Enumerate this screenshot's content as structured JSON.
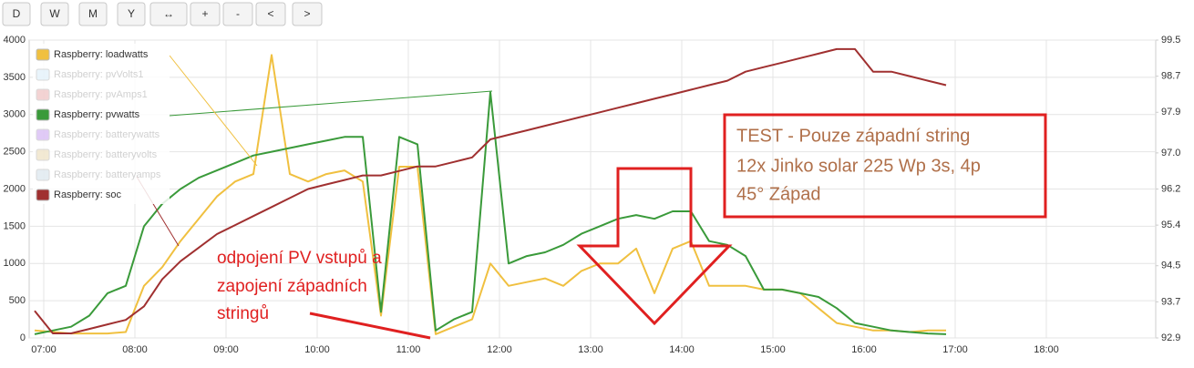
{
  "toolbar": [
    "D",
    "W",
    "M",
    "Y",
    "↔",
    "+",
    "-",
    "<",
    ">"
  ],
  "chart_data": {
    "type": "line",
    "x": [
      6.9,
      7.1,
      7.3,
      7.5,
      7.7,
      7.9,
      8.1,
      8.3,
      8.5,
      8.7,
      8.9,
      9.1,
      9.3,
      9.5,
      9.7,
      9.9,
      10.1,
      10.3,
      10.5,
      10.7,
      10.9,
      11.1,
      11.3,
      11.5,
      11.7,
      11.9,
      12.1,
      12.3,
      12.5,
      12.7,
      12.9,
      13.1,
      13.3,
      13.5,
      13.7,
      13.9,
      14.1,
      14.3,
      14.5,
      14.7,
      14.9,
      15.1,
      15.3,
      15.5,
      15.7,
      15.9,
      16.1,
      16.3,
      16.5,
      16.7,
      16.9
    ],
    "xlim": [
      6.84,
      19.2
    ],
    "xticks": [
      {
        "value": 7,
        "label": "07:00"
      },
      {
        "value": 8,
        "label": "08:00"
      },
      {
        "value": 9,
        "label": "09:00"
      },
      {
        "value": 10,
        "label": "10:00"
      },
      {
        "value": 11,
        "label": "11:00"
      },
      {
        "value": 12,
        "label": "12:00"
      },
      {
        "value": 13,
        "label": "13:00"
      },
      {
        "value": 14,
        "label": "14:00"
      },
      {
        "value": 15,
        "label": "15:00"
      },
      {
        "value": 16,
        "label": "16:00"
      },
      {
        "value": 17,
        "label": "17:00"
      },
      {
        "value": 18,
        "label": "18:00"
      }
    ],
    "ylim": [
      0,
      4000
    ],
    "yticks": [
      0,
      500,
      1000,
      1500,
      2000,
      2500,
      3000,
      3500,
      4000
    ],
    "y2lim": [
      92.9,
      99.5
    ],
    "y2ticks": [
      92.9,
      93.7,
      94.5,
      95.4,
      96.2,
      {
        "value": 97,
        "label": "97.0"
      },
      97.9,
      98.7,
      99.5
    ],
    "grid": true,
    "legend": "top-left",
    "series": [
      {
        "name": "Raspberry: loadwatts",
        "color": "#f0c040",
        "values": [
          100,
          80,
          60,
          60,
          60,
          80,
          700,
          950,
          1300,
          1600,
          1900,
          2100,
          2200,
          3800,
          2200,
          2100,
          2200,
          2250,
          2100,
          300,
          2300,
          2300,
          50,
          150,
          250,
          1000,
          700,
          750,
          800,
          700,
          900,
          1000,
          1000,
          1200,
          600,
          1200,
          1300,
          700,
          700,
          700,
          650,
          650,
          600,
          400,
          200,
          150,
          100,
          100,
          80,
          100,
          100
        ]
      },
      {
        "name": "Raspberry: pvVolts1",
        "color": "#d8ecf8",
        "visible": false
      },
      {
        "name": "Raspberry: pvAmps1",
        "color": "#eab0b0",
        "visible": false
      },
      {
        "name": "Raspberry: pvwatts",
        "color": "#3a9a3a",
        "values": [
          50,
          100,
          150,
          300,
          600,
          700,
          1500,
          1800,
          2000,
          2150,
          2250,
          2350,
          2450,
          2500,
          2550,
          2600,
          2650,
          2700,
          2700,
          350,
          2700,
          2600,
          100,
          250,
          350,
          3300,
          1000,
          1100,
          1150,
          1250,
          1400,
          1500,
          1600,
          1650,
          1600,
          1700,
          1700,
          1300,
          1250,
          1100,
          650,
          650,
          600,
          550,
          400,
          200,
          150,
          100,
          80,
          60,
          50
        ]
      },
      {
        "name": "Raspberry: batterywatts",
        "color": "#c8a0f0",
        "visible": false
      },
      {
        "name": "Raspberry: batteryvolts",
        "color": "#e8d8b0",
        "visible": false
      },
      {
        "name": "Raspberry: batteryamps",
        "color": "#d0e0e8",
        "visible": false
      },
      {
        "name": "Raspberry: soc",
        "color": "#a03030",
        "axis": "y2",
        "values": [
          93.5,
          93.0,
          93.0,
          93.1,
          93.2,
          93.3,
          93.6,
          94.2,
          94.6,
          94.9,
          95.2,
          95.4,
          95.6,
          95.8,
          96.0,
          96.2,
          96.3,
          96.4,
          96.5,
          96.5,
          96.6,
          96.7,
          96.7,
          96.8,
          96.9,
          97.3,
          97.4,
          97.5,
          97.6,
          97.7,
          97.8,
          97.9,
          98.0,
          98.1,
          98.2,
          98.3,
          98.4,
          98.5,
          98.6,
          98.8,
          98.9,
          99.0,
          99.1,
          99.2,
          99.3,
          99.3,
          98.8,
          98.8,
          98.7,
          98.6,
          98.5
        ]
      }
    ],
    "annotations": [
      "odpojení PV vstupů a",
      "zapojení západních",
      "stringů",
      "TEST - Pouze západní string",
      "12x Jinko solar 225 Wp  3s, 4p",
      "45° Západ"
    ]
  }
}
